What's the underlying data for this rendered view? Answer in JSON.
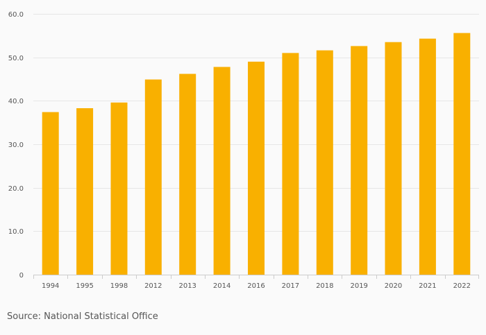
{
  "chart_data": {
    "type": "bar",
    "title": "",
    "xlabel": "",
    "ylabel": "",
    "categories": [
      "1994",
      "1995",
      "1998",
      "2012",
      "2013",
      "2014",
      "2016",
      "2017",
      "2018",
      "2019",
      "2020",
      "2021",
      "2022"
    ],
    "values": [
      37.4,
      38.3,
      39.6,
      44.9,
      46.2,
      47.8,
      49.0,
      51.0,
      51.6,
      52.6,
      53.5,
      54.3,
      55.6
    ],
    "ylim": [
      0,
      60
    ],
    "yticks": [
      "0",
      "10.0",
      "20.0",
      "30.0",
      "40.0",
      "50.0",
      "60.0"
    ],
    "bar_color": "#f9b000",
    "grid": true,
    "legend": "none"
  },
  "source": "Source: National Statistical Office"
}
